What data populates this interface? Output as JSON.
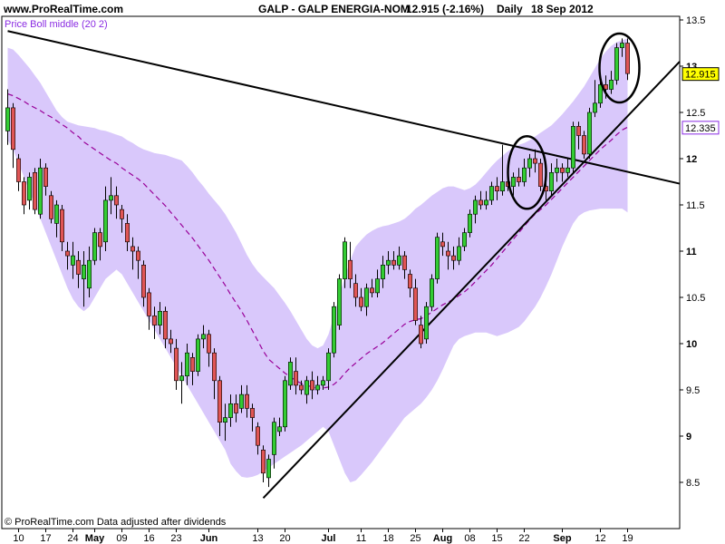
{
  "header": {
    "site": "www.ProRealTime.com",
    "instrument": "GALP - GALP ENERGIA-NOM",
    "last_change": "12.915 (-2.16%)",
    "period": "Daily",
    "date": "18 Sep 2012"
  },
  "footer": {
    "note": "© ProRealTime.com  Data adjusted after dividends"
  },
  "legend": {
    "label": "Price Boll middle (20 2)"
  },
  "colors": {
    "band_fill": "#d9c8fb",
    "bull": "#33cc33",
    "bear": "#e05555",
    "middle_line": "#990099",
    "trend": "#000000",
    "last_price_box": "#ffff00",
    "middle_box_border": "#8a2be2"
  },
  "chart_data": {
    "type": "candlestick",
    "title": "GALP - GALP ENERGIA-NOM",
    "period": "Daily",
    "ylim": [
      8.2,
      13.6
    ],
    "y_ticks": [
      {
        "value": 13.5,
        "label": "13.5",
        "bold": false
      },
      {
        "value": 13,
        "label": "13",
        "bold": true
      },
      {
        "value": 12.5,
        "label": "12.5",
        "bold": false
      },
      {
        "value": 12,
        "label": "12",
        "bold": true
      },
      {
        "value": 11.5,
        "label": "11.5",
        "bold": false
      },
      {
        "value": 11,
        "label": "11",
        "bold": true
      },
      {
        "value": 10.5,
        "label": "10.5",
        "bold": false
      },
      {
        "value": 10,
        "label": "10",
        "bold": true
      },
      {
        "value": 9.5,
        "label": "9.5",
        "bold": false
      },
      {
        "value": 9,
        "label": "9",
        "bold": true
      },
      {
        "value": 8.5,
        "label": "8.5",
        "bold": false
      }
    ],
    "x_ticks": [
      {
        "i": 2,
        "label": "10",
        "bold": false
      },
      {
        "i": 7,
        "label": "17",
        "bold": false
      },
      {
        "i": 12,
        "label": "24",
        "bold": false
      },
      {
        "i": 16,
        "label": "May",
        "bold": true
      },
      {
        "i": 21,
        "label": "09",
        "bold": false
      },
      {
        "i": 26,
        "label": "16",
        "bold": false
      },
      {
        "i": 31,
        "label": "23",
        "bold": false
      },
      {
        "i": 37,
        "label": "Jun",
        "bold": true
      },
      {
        "i": 46,
        "label": "13",
        "bold": false
      },
      {
        "i": 51,
        "label": "20",
        "bold": false
      },
      {
        "i": 59,
        "label": "Jul",
        "bold": true
      },
      {
        "i": 65,
        "label": "11",
        "bold": false
      },
      {
        "i": 70,
        "label": "18",
        "bold": false
      },
      {
        "i": 75,
        "label": "25",
        "bold": false
      },
      {
        "i": 80,
        "label": "Aug",
        "bold": true
      },
      {
        "i": 85,
        "label": "08",
        "bold": false
      },
      {
        "i": 90,
        "label": "15",
        "bold": false
      },
      {
        "i": 95,
        "label": "22",
        "bold": false
      },
      {
        "i": 102,
        "label": "Sep",
        "bold": true
      },
      {
        "i": 109,
        "label": "12",
        "bold": false
      },
      {
        "i": 114,
        "label": "19",
        "bold": false
      }
    ],
    "candles": [
      [
        12.3,
        12.55,
        12.75,
        12.15
      ],
      [
        12.55,
        12.1,
        12.6,
        11.9
      ],
      [
        12.0,
        11.75,
        12.05,
        11.65
      ],
      [
        11.75,
        11.5,
        11.8,
        11.4
      ],
      [
        11.55,
        11.8,
        11.85,
        11.45
      ],
      [
        11.85,
        11.45,
        11.9,
        11.4
      ],
      [
        11.4,
        11.9,
        12.0,
        11.35
      ],
      [
        11.9,
        11.7,
        11.95,
        11.6
      ],
      [
        11.6,
        11.35,
        11.65,
        11.3
      ],
      [
        11.3,
        11.5,
        11.55,
        11.15
      ],
      [
        11.45,
        11.1,
        11.5,
        11.0
      ],
      [
        11.0,
        10.95,
        11.1,
        10.8
      ],
      [
        10.85,
        10.95,
        11.1,
        10.7
      ],
      [
        10.9,
        10.75,
        11.0,
        10.6
      ],
      [
        10.7,
        10.85,
        11.0,
        10.4
      ],
      [
        10.6,
        10.9,
        11.05,
        10.5
      ],
      [
        10.9,
        11.2,
        11.25,
        10.85
      ],
      [
        11.2,
        11.05,
        11.25,
        10.9
      ],
      [
        11.1,
        11.55,
        11.7,
        11.0
      ],
      [
        11.55,
        11.6,
        11.8,
        11.4
      ],
      [
        11.6,
        11.5,
        11.7,
        11.35
      ],
      [
        11.45,
        11.35,
        11.5,
        11.2
      ],
      [
        11.3,
        11.1,
        11.4,
        11.0
      ],
      [
        11.05,
        11.0,
        11.15,
        10.8
      ],
      [
        11.0,
        10.9,
        11.05,
        10.7
      ],
      [
        10.85,
        10.5,
        10.9,
        10.4
      ],
      [
        10.55,
        10.3,
        10.6,
        10.15
      ],
      [
        10.3,
        10.2,
        10.4,
        10.05
      ],
      [
        10.2,
        10.35,
        10.45,
        10.1
      ],
      [
        10.35,
        10.05,
        10.4,
        9.95
      ],
      [
        10.05,
        10.0,
        10.15,
        9.9
      ],
      [
        9.95,
        9.6,
        10.05,
        9.5
      ],
      [
        9.6,
        9.65,
        9.8,
        9.35
      ],
      [
        9.65,
        9.9,
        10.0,
        9.55
      ],
      [
        9.85,
        9.7,
        9.9,
        9.55
      ],
      [
        9.7,
        10.05,
        10.1,
        9.65
      ],
      [
        10.05,
        10.1,
        10.2,
        9.95
      ],
      [
        10.1,
        9.9,
        10.15,
        9.75
      ],
      [
        9.9,
        9.6,
        9.95,
        9.4
      ],
      [
        9.6,
        9.15,
        9.65,
        9.0
      ],
      [
        9.15,
        9.2,
        9.35,
        8.95
      ],
      [
        9.2,
        9.35,
        9.45,
        9.1
      ],
      [
        9.35,
        9.25,
        9.45,
        9.15
      ],
      [
        9.3,
        9.45,
        9.55,
        9.25
      ],
      [
        9.45,
        9.3,
        9.55,
        9.2
      ],
      [
        9.3,
        9.2,
        9.35,
        9.05
      ],
      [
        9.1,
        8.9,
        9.15,
        8.8
      ],
      [
        8.85,
        8.6,
        8.9,
        8.5
      ],
      [
        8.55,
        8.75,
        8.8,
        8.45
      ],
      [
        8.8,
        9.15,
        9.2,
        8.65
      ],
      [
        9.05,
        9.1,
        9.2,
        9.0
      ],
      [
        9.1,
        9.6,
        9.65,
        9.05
      ],
      [
        9.55,
        9.8,
        9.85,
        9.5
      ],
      [
        9.7,
        9.55,
        9.85,
        9.45
      ],
      [
        9.55,
        9.5,
        9.6,
        9.45
      ],
      [
        9.45,
        9.6,
        9.65,
        9.35
      ],
      [
        9.6,
        9.5,
        9.7,
        9.4
      ],
      [
        9.5,
        9.55,
        9.65,
        9.45
      ],
      [
        9.55,
        9.6,
        9.65,
        9.5
      ],
      [
        9.6,
        9.9,
        9.95,
        9.5
      ],
      [
        9.9,
        10.4,
        10.45,
        9.85
      ],
      [
        10.2,
        10.7,
        10.75,
        10.15
      ],
      [
        10.7,
        11.1,
        11.15,
        10.6
      ],
      [
        10.9,
        10.7,
        11.1,
        10.6
      ],
      [
        10.65,
        10.5,
        10.75,
        10.4
      ],
      [
        10.5,
        10.4,
        10.6,
        10.35
      ],
      [
        10.4,
        10.6,
        10.65,
        10.3
      ],
      [
        10.6,
        10.55,
        10.7,
        10.5
      ],
      [
        10.55,
        10.7,
        10.8,
        10.5
      ],
      [
        10.7,
        10.85,
        10.95,
        10.6
      ],
      [
        10.85,
        10.9,
        11.0,
        10.75
      ],
      [
        10.9,
        10.85,
        11.0,
        10.8
      ],
      [
        10.85,
        10.95,
        11.05,
        10.8
      ],
      [
        10.95,
        10.8,
        11.0,
        10.7
      ],
      [
        10.75,
        10.6,
        10.8,
        10.5
      ],
      [
        10.6,
        10.25,
        10.7,
        10.2
      ],
      [
        10.2,
        10.0,
        10.3,
        9.95
      ],
      [
        10.05,
        10.4,
        10.45,
        10.0
      ],
      [
        10.4,
        10.7,
        10.75,
        10.35
      ],
      [
        10.7,
        11.15,
        11.2,
        10.65
      ],
      [
        11.1,
        11.05,
        11.2,
        10.95
      ],
      [
        11.0,
        10.95,
        11.1,
        10.8
      ],
      [
        10.95,
        10.9,
        11.05,
        10.8
      ],
      [
        10.9,
        11.05,
        11.15,
        10.85
      ],
      [
        11.05,
        11.2,
        11.25,
        11.0
      ],
      [
        11.2,
        11.4,
        11.45,
        11.15
      ],
      [
        11.4,
        11.55,
        11.6,
        11.3
      ],
      [
        11.55,
        11.5,
        11.65,
        11.45
      ],
      [
        11.5,
        11.55,
        11.65,
        11.45
      ],
      [
        11.55,
        11.7,
        11.75,
        11.5
      ],
      [
        11.7,
        11.65,
        11.8,
        11.55
      ],
      [
        11.65,
        11.75,
        12.15,
        11.6
      ],
      [
        11.75,
        11.7,
        11.85,
        11.65
      ],
      [
        11.7,
        11.8,
        11.85,
        11.6
      ],
      [
        11.8,
        11.75,
        11.9,
        11.7
      ],
      [
        11.75,
        11.9,
        12.0,
        11.7
      ],
      [
        11.9,
        12.0,
        12.05,
        11.8
      ],
      [
        12.0,
        11.95,
        12.1,
        11.85
      ],
      [
        11.95,
        11.7,
        12.0,
        11.65
      ],
      [
        11.7,
        11.65,
        11.8,
        11.55
      ],
      [
        11.65,
        11.85,
        11.95,
        11.6
      ],
      [
        11.85,
        11.9,
        12.0,
        11.75
      ],
      [
        11.9,
        11.85,
        11.95,
        11.75
      ],
      [
        11.85,
        11.9,
        12.0,
        11.8
      ],
      [
        11.9,
        12.35,
        12.4,
        11.85
      ],
      [
        12.35,
        12.25,
        12.4,
        12.1
      ],
      [
        12.25,
        12.05,
        12.3,
        12.0
      ],
      [
        12.05,
        12.5,
        12.55,
        12.0
      ],
      [
        12.5,
        12.6,
        12.85,
        12.45
      ],
      [
        12.6,
        12.8,
        12.85,
        12.55
      ],
      [
        12.8,
        12.75,
        12.9,
        12.65
      ],
      [
        12.75,
        12.85,
        12.95,
        12.7
      ],
      [
        12.85,
        13.2,
        13.25,
        12.8
      ],
      [
        13.2,
        13.25,
        13.3,
        13.1
      ],
      [
        13.25,
        12.92,
        13.3,
        12.85
      ]
    ],
    "middle": [
      12.7,
      12.68,
      12.65,
      12.62,
      12.58,
      12.55,
      12.52,
      12.48,
      12.45,
      12.41,
      12.37,
      12.33,
      12.28,
      12.24,
      12.18,
      12.14,
      12.1,
      12.06,
      12.02,
      11.98,
      11.95,
      11.9,
      11.86,
      11.82,
      11.78,
      11.73,
      11.67,
      11.61,
      11.55,
      11.49,
      11.42,
      11.35,
      11.28,
      11.21,
      11.14,
      11.06,
      10.98,
      10.9,
      10.81,
      10.72,
      10.63,
      10.53,
      10.44,
      10.35,
      10.25,
      10.14,
      10.03,
      9.92,
      9.83,
      9.78,
      9.73,
      9.68,
      9.64,
      9.6,
      9.57,
      9.55,
      9.53,
      9.52,
      9.52,
      9.53,
      9.56,
      9.61,
      9.68,
      9.74,
      9.79,
      9.84,
      9.89,
      9.93,
      9.97,
      10.01,
      10.06,
      10.11,
      10.16,
      10.21,
      10.24,
      10.26,
      10.27,
      10.3,
      10.34,
      10.38,
      10.42,
      10.45,
      10.48,
      10.52,
      10.56,
      10.61,
      10.67,
      10.73,
      10.79,
      10.85,
      10.92,
      10.99,
      11.06,
      11.13,
      11.2,
      11.27,
      11.34,
      11.4,
      11.45,
      11.5,
      11.56,
      11.62,
      11.68,
      11.74,
      11.8,
      11.86,
      11.92,
      11.98,
      12.04,
      12.1,
      12.15,
      12.2,
      12.26,
      12.31,
      12.34
    ],
    "upper": [
      13.2,
      13.18,
      13.12,
      13.05,
      12.98,
      12.9,
      12.82,
      12.72,
      12.62,
      12.52,
      12.45,
      12.4,
      12.38,
      12.36,
      12.35,
      12.34,
      12.33,
      12.31,
      12.3,
      12.28,
      12.26,
      12.24,
      12.2,
      12.17,
      12.13,
      12.1,
      12.08,
      12.06,
      12.05,
      12.04,
      12.02,
      12.0,
      11.98,
      11.92,
      11.85,
      11.77,
      11.7,
      11.62,
      11.55,
      11.48,
      11.4,
      11.3,
      11.2,
      11.08,
      10.96,
      10.86,
      10.78,
      10.72,
      10.66,
      10.6,
      10.52,
      10.44,
      10.35,
      10.25,
      10.15,
      10.05,
      9.98,
      9.95,
      9.98,
      10.1,
      10.3,
      10.52,
      10.72,
      10.9,
      11.05,
      11.12,
      11.18,
      11.22,
      11.25,
      11.27,
      11.28,
      11.3,
      11.32,
      11.35,
      11.4,
      11.46,
      11.5,
      11.55,
      11.6,
      11.64,
      11.68,
      11.7,
      11.7,
      11.68,
      11.66,
      11.68,
      11.72,
      11.78,
      11.85,
      11.92,
      11.98,
      12.03,
      12.08,
      12.12,
      12.15,
      12.17,
      12.2,
      12.24,
      12.28,
      12.32,
      12.36,
      12.42,
      12.48,
      12.55,
      12.62,
      12.7,
      12.78,
      12.88,
      12.98,
      13.08,
      13.16,
      13.22,
      13.26,
      13.28,
      13.3
    ],
    "lower": [
      12.2,
      12.1,
      11.95,
      11.8,
      11.65,
      11.5,
      11.35,
      11.2,
      11.05,
      10.9,
      10.75,
      10.6,
      10.48,
      10.4,
      10.35,
      10.4,
      10.5,
      10.6,
      10.7,
      10.75,
      10.8,
      10.75,
      10.65,
      10.55,
      10.45,
      10.35,
      10.25,
      10.15,
      10.05,
      9.95,
      9.85,
      9.75,
      9.65,
      9.55,
      9.45,
      9.35,
      9.25,
      9.15,
      9.05,
      8.95,
      8.85,
      8.7,
      8.62,
      8.56,
      8.55,
      8.56,
      8.58,
      8.62,
      8.66,
      8.7,
      8.74,
      8.78,
      8.82,
      8.86,
      8.9,
      8.95,
      9.0,
      9.05,
      9.1,
      9.05,
      8.9,
      8.75,
      8.6,
      8.5,
      8.52,
      8.58,
      8.65,
      8.72,
      8.8,
      8.88,
      8.96,
      9.04,
      9.12,
      9.2,
      9.25,
      9.3,
      9.35,
      9.42,
      9.5,
      9.6,
      9.72,
      9.85,
      9.98,
      10.05,
      10.08,
      10.1,
      10.12,
      10.12,
      10.12,
      10.1,
      10.08,
      10.1,
      10.12,
      10.15,
      10.18,
      10.24,
      10.32,
      10.4,
      10.5,
      10.62,
      10.75,
      10.9,
      11.05,
      11.18,
      11.3,
      11.38,
      11.42,
      11.44,
      11.45,
      11.46,
      11.46,
      11.46,
      11.46,
      11.46,
      11.42
    ],
    "trendlines": [
      {
        "from": [
          0,
          13.38
        ],
        "to": [
          124,
          11.73
        ]
      },
      {
        "from": [
          47,
          8.33
        ],
        "to": [
          124,
          13.05
        ]
      }
    ],
    "ellipses": [
      {
        "i": 95.5,
        "y": 11.85,
        "rx": 21,
        "ry": 40
      },
      {
        "i": 112.5,
        "y": 12.98,
        "rx": 22,
        "ry": 38
      }
    ],
    "value_boxes": [
      {
        "value": 12.915,
        "label": "12.915",
        "style": "last"
      },
      {
        "value": 12.335,
        "label": "12.335",
        "style": "middle"
      }
    ]
  }
}
